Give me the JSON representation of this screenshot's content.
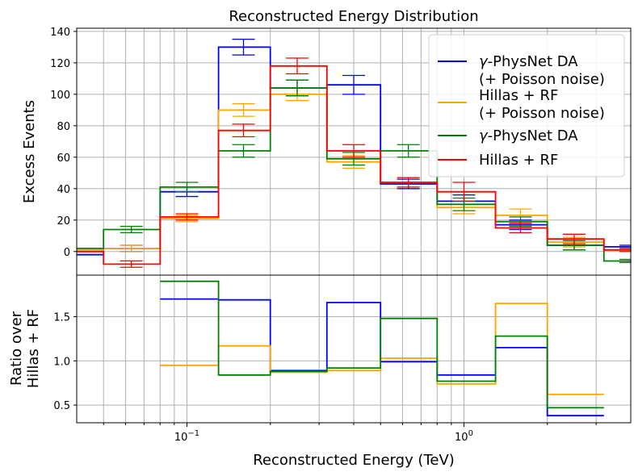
{
  "chart_data": [
    {
      "type": "line",
      "drawstyle": "steps-post",
      "title": "Reconstructed Energy Distribution",
      "xlabel": "",
      "ylabel": "Excess Events",
      "xscale": "log",
      "xlim": [
        0.04,
        4.0
      ],
      "ylim": [
        -15,
        142
      ],
      "yticks": [
        0,
        20,
        40,
        60,
        80,
        100,
        120,
        140
      ],
      "grid": true,
      "legend_position": "top-right",
      "bin_edges": [
        0.02,
        0.05,
        0.08,
        0.13,
        0.2,
        0.32,
        0.5,
        0.8,
        1.3,
        2.0,
        3.2,
        5.0
      ],
      "series": [
        {
          "name": "γ-PhysNet DA\n(+ Poisson noise)",
          "legend_math": "γ",
          "legend_rest": "-PhysNet DA",
          "legend_line2": "(+ Poisson noise)",
          "color": "#0000ff",
          "values": [
            -2,
            2,
            38,
            130,
            104,
            106,
            43,
            32,
            17,
            4,
            3
          ],
          "errors": [
            2,
            2,
            3,
            5,
            5,
            6,
            3,
            4,
            3,
            3,
            1
          ],
          "error_centers": [
            0.033,
            0.063,
            0.1,
            0.16,
            0.25,
            0.4,
            0.63,
            1.0,
            1.6,
            2.5,
            4.0
          ]
        },
        {
          "name": "Hillas + RF\n(+ Poisson noise)",
          "legend_math": "",
          "legend_rest": "Hillas + RF",
          "legend_line2": "(+ Poisson noise)",
          "color": "#ffa500",
          "values": [
            1,
            2,
            21,
            90,
            100,
            57,
            44,
            28,
            23,
            6,
            1
          ],
          "errors": [
            2,
            2,
            2,
            4,
            4,
            4,
            3,
            4,
            4,
            3,
            1
          ],
          "error_centers": [
            0.033,
            0.063,
            0.1,
            0.16,
            0.25,
            0.4,
            0.63,
            1.0,
            1.6,
            2.5,
            4.0
          ]
        },
        {
          "name": "γ-PhysNet DA",
          "legend_math": "γ",
          "legend_rest": "-PhysNet DA",
          "legend_line2": "",
          "color": "#008000",
          "values": [
            2,
            14,
            41,
            64,
            104,
            59,
            64,
            30,
            19,
            4,
            -6
          ],
          "errors": [
            2,
            2,
            3,
            4,
            5,
            4,
            4,
            4,
            3,
            3,
            1
          ],
          "error_centers": [
            0.033,
            0.063,
            0.1,
            0.16,
            0.25,
            0.4,
            0.63,
            1.0,
            1.6,
            2.5,
            4.0
          ]
        },
        {
          "name": "Hillas + RF",
          "legend_math": "",
          "legend_rest": "Hillas + RF",
          "legend_line2": "",
          "color": "#ff0000",
          "values": [
            0,
            -8,
            22,
            77,
            118,
            64,
            44,
            38,
            15,
            8,
            1
          ],
          "errors": [
            2,
            2,
            2,
            4,
            5,
            4,
            3,
            6,
            3,
            3,
            1
          ],
          "error_centers": [
            0.033,
            0.063,
            0.1,
            0.16,
            0.25,
            0.4,
            0.63,
            1.0,
            1.6,
            2.5,
            4.0
          ]
        }
      ]
    },
    {
      "type": "line",
      "drawstyle": "steps-post",
      "title": "",
      "xlabel": "Reconstructed Energy (TeV)",
      "ylabel_line1": "Ratio over",
      "ylabel_line2": "Hillas + RF",
      "xscale": "log",
      "xlim": [
        0.04,
        4.0
      ],
      "ylim": [
        0.3,
        1.97
      ],
      "yticks": [
        0.5,
        1.0,
        1.5
      ],
      "ytick_labels": [
        "0.5",
        "1.0",
        "1.5"
      ],
      "xticks": [
        0.1,
        1.0
      ],
      "xtick_base": "10",
      "xtick_exps": [
        "−1",
        "0"
      ],
      "grid": true,
      "bin_edges": [
        0.08,
        0.13,
        0.2,
        0.32,
        0.5,
        0.8,
        1.3,
        2.0,
        3.2
      ],
      "series": [
        {
          "name": "γ-PhysNet DA (+ Poisson noise)",
          "color": "#0000ff",
          "values": [
            1.7,
            1.69,
            0.89,
            1.66,
            0.99,
            0.84,
            1.15,
            0.38
          ]
        },
        {
          "name": "Hillas + RF (+ Poisson noise)",
          "color": "#ffa500",
          "values": [
            0.95,
            1.17,
            0.87,
            0.89,
            1.03,
            0.74,
            1.65,
            0.62
          ]
        },
        {
          "name": "γ-PhysNet DA",
          "color": "#008000",
          "values": [
            1.9,
            0.84,
            0.88,
            0.92,
            1.48,
            0.77,
            1.28,
            0.47
          ]
        }
      ]
    }
  ]
}
